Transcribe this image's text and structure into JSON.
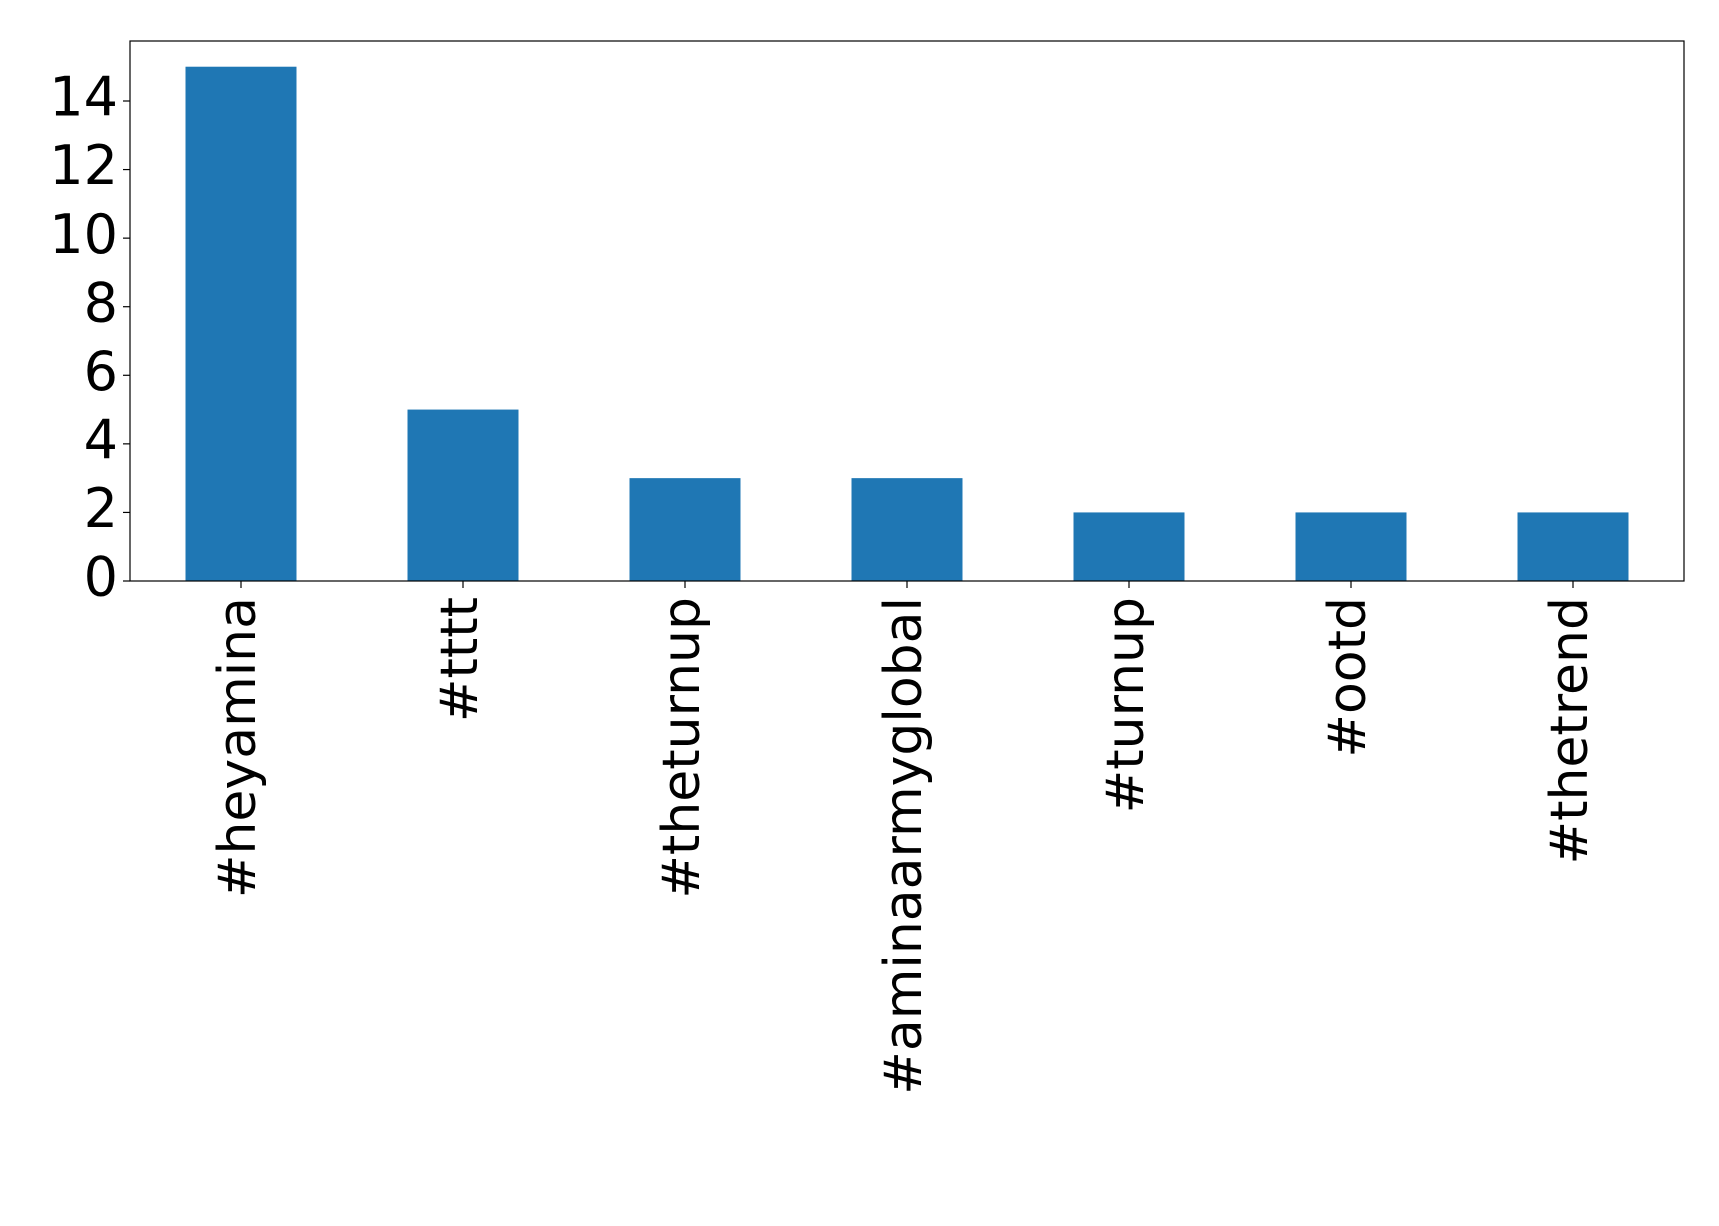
{
  "chart_data": {
    "type": "bar",
    "categories": [
      "#heyamina",
      "#tttt",
      "#theturnup",
      "#aminaarmyglobal",
      "#turnup",
      "#ootd",
      "#thetrend"
    ],
    "values": [
      15,
      5,
      3,
      3,
      2,
      2,
      2
    ],
    "color": "#1f77b4",
    "ylim": [
      0,
      15.75
    ],
    "yticks": [
      0,
      2,
      4,
      6,
      8,
      10,
      12,
      14
    ],
    "grid": false
  }
}
